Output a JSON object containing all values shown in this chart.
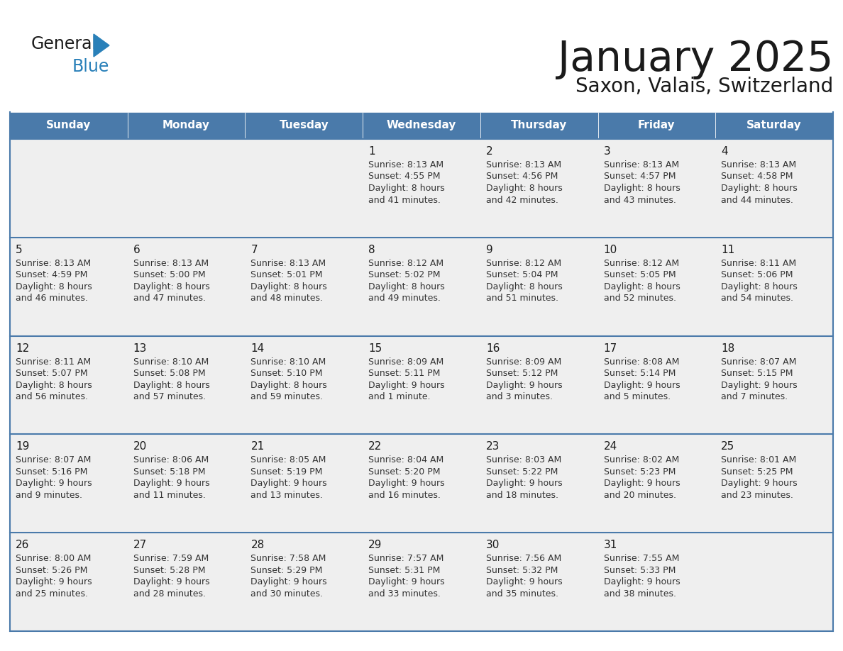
{
  "title": "January 2025",
  "subtitle": "Saxon, Valais, Switzerland",
  "header_color": "#4a7aaa",
  "header_text_color": "#FFFFFF",
  "row_bg_color": "#EFEFEF",
  "border_color": "#4a7aaa",
  "separator_color": "#4a7aaa",
  "day_headers": [
    "Sunday",
    "Monday",
    "Tuesday",
    "Wednesday",
    "Thursday",
    "Friday",
    "Saturday"
  ],
  "title_color": "#1a1a1a",
  "subtitle_color": "#1a1a1a",
  "day_number_color": "#1a1a1a",
  "cell_text_color": "#333333",
  "logo_general_color": "#1a1a1a",
  "logo_blue_color": "#2980B9",
  "logo_triangle_color": "#2980B9",
  "calendar": [
    [
      {
        "day": "",
        "lines": []
      },
      {
        "day": "",
        "lines": []
      },
      {
        "day": "",
        "lines": []
      },
      {
        "day": "1",
        "lines": [
          "Sunrise: 8:13 AM",
          "Sunset: 4:55 PM",
          "Daylight: 8 hours",
          "and 41 minutes."
        ]
      },
      {
        "day": "2",
        "lines": [
          "Sunrise: 8:13 AM",
          "Sunset: 4:56 PM",
          "Daylight: 8 hours",
          "and 42 minutes."
        ]
      },
      {
        "day": "3",
        "lines": [
          "Sunrise: 8:13 AM",
          "Sunset: 4:57 PM",
          "Daylight: 8 hours",
          "and 43 minutes."
        ]
      },
      {
        "day": "4",
        "lines": [
          "Sunrise: 8:13 AM",
          "Sunset: 4:58 PM",
          "Daylight: 8 hours",
          "and 44 minutes."
        ]
      }
    ],
    [
      {
        "day": "5",
        "lines": [
          "Sunrise: 8:13 AM",
          "Sunset: 4:59 PM",
          "Daylight: 8 hours",
          "and 46 minutes."
        ]
      },
      {
        "day": "6",
        "lines": [
          "Sunrise: 8:13 AM",
          "Sunset: 5:00 PM",
          "Daylight: 8 hours",
          "and 47 minutes."
        ]
      },
      {
        "day": "7",
        "lines": [
          "Sunrise: 8:13 AM",
          "Sunset: 5:01 PM",
          "Daylight: 8 hours",
          "and 48 minutes."
        ]
      },
      {
        "day": "8",
        "lines": [
          "Sunrise: 8:12 AM",
          "Sunset: 5:02 PM",
          "Daylight: 8 hours",
          "and 49 minutes."
        ]
      },
      {
        "day": "9",
        "lines": [
          "Sunrise: 8:12 AM",
          "Sunset: 5:04 PM",
          "Daylight: 8 hours",
          "and 51 minutes."
        ]
      },
      {
        "day": "10",
        "lines": [
          "Sunrise: 8:12 AM",
          "Sunset: 5:05 PM",
          "Daylight: 8 hours",
          "and 52 minutes."
        ]
      },
      {
        "day": "11",
        "lines": [
          "Sunrise: 8:11 AM",
          "Sunset: 5:06 PM",
          "Daylight: 8 hours",
          "and 54 minutes."
        ]
      }
    ],
    [
      {
        "day": "12",
        "lines": [
          "Sunrise: 8:11 AM",
          "Sunset: 5:07 PM",
          "Daylight: 8 hours",
          "and 56 minutes."
        ]
      },
      {
        "day": "13",
        "lines": [
          "Sunrise: 8:10 AM",
          "Sunset: 5:08 PM",
          "Daylight: 8 hours",
          "and 57 minutes."
        ]
      },
      {
        "day": "14",
        "lines": [
          "Sunrise: 8:10 AM",
          "Sunset: 5:10 PM",
          "Daylight: 8 hours",
          "and 59 minutes."
        ]
      },
      {
        "day": "15",
        "lines": [
          "Sunrise: 8:09 AM",
          "Sunset: 5:11 PM",
          "Daylight: 9 hours",
          "and 1 minute."
        ]
      },
      {
        "day": "16",
        "lines": [
          "Sunrise: 8:09 AM",
          "Sunset: 5:12 PM",
          "Daylight: 9 hours",
          "and 3 minutes."
        ]
      },
      {
        "day": "17",
        "lines": [
          "Sunrise: 8:08 AM",
          "Sunset: 5:14 PM",
          "Daylight: 9 hours",
          "and 5 minutes."
        ]
      },
      {
        "day": "18",
        "lines": [
          "Sunrise: 8:07 AM",
          "Sunset: 5:15 PM",
          "Daylight: 9 hours",
          "and 7 minutes."
        ]
      }
    ],
    [
      {
        "day": "19",
        "lines": [
          "Sunrise: 8:07 AM",
          "Sunset: 5:16 PM",
          "Daylight: 9 hours",
          "and 9 minutes."
        ]
      },
      {
        "day": "20",
        "lines": [
          "Sunrise: 8:06 AM",
          "Sunset: 5:18 PM",
          "Daylight: 9 hours",
          "and 11 minutes."
        ]
      },
      {
        "day": "21",
        "lines": [
          "Sunrise: 8:05 AM",
          "Sunset: 5:19 PM",
          "Daylight: 9 hours",
          "and 13 minutes."
        ]
      },
      {
        "day": "22",
        "lines": [
          "Sunrise: 8:04 AM",
          "Sunset: 5:20 PM",
          "Daylight: 9 hours",
          "and 16 minutes."
        ]
      },
      {
        "day": "23",
        "lines": [
          "Sunrise: 8:03 AM",
          "Sunset: 5:22 PM",
          "Daylight: 9 hours",
          "and 18 minutes."
        ]
      },
      {
        "day": "24",
        "lines": [
          "Sunrise: 8:02 AM",
          "Sunset: 5:23 PM",
          "Daylight: 9 hours",
          "and 20 minutes."
        ]
      },
      {
        "day": "25",
        "lines": [
          "Sunrise: 8:01 AM",
          "Sunset: 5:25 PM",
          "Daylight: 9 hours",
          "and 23 minutes."
        ]
      }
    ],
    [
      {
        "day": "26",
        "lines": [
          "Sunrise: 8:00 AM",
          "Sunset: 5:26 PM",
          "Daylight: 9 hours",
          "and 25 minutes."
        ]
      },
      {
        "day": "27",
        "lines": [
          "Sunrise: 7:59 AM",
          "Sunset: 5:28 PM",
          "Daylight: 9 hours",
          "and 28 minutes."
        ]
      },
      {
        "day": "28",
        "lines": [
          "Sunrise: 7:58 AM",
          "Sunset: 5:29 PM",
          "Daylight: 9 hours",
          "and 30 minutes."
        ]
      },
      {
        "day": "29",
        "lines": [
          "Sunrise: 7:57 AM",
          "Sunset: 5:31 PM",
          "Daylight: 9 hours",
          "and 33 minutes."
        ]
      },
      {
        "day": "30",
        "lines": [
          "Sunrise: 7:56 AM",
          "Sunset: 5:32 PM",
          "Daylight: 9 hours",
          "and 35 minutes."
        ]
      },
      {
        "day": "31",
        "lines": [
          "Sunrise: 7:55 AM",
          "Sunset: 5:33 PM",
          "Daylight: 9 hours",
          "and 38 minutes."
        ]
      },
      {
        "day": "",
        "lines": []
      }
    ]
  ]
}
